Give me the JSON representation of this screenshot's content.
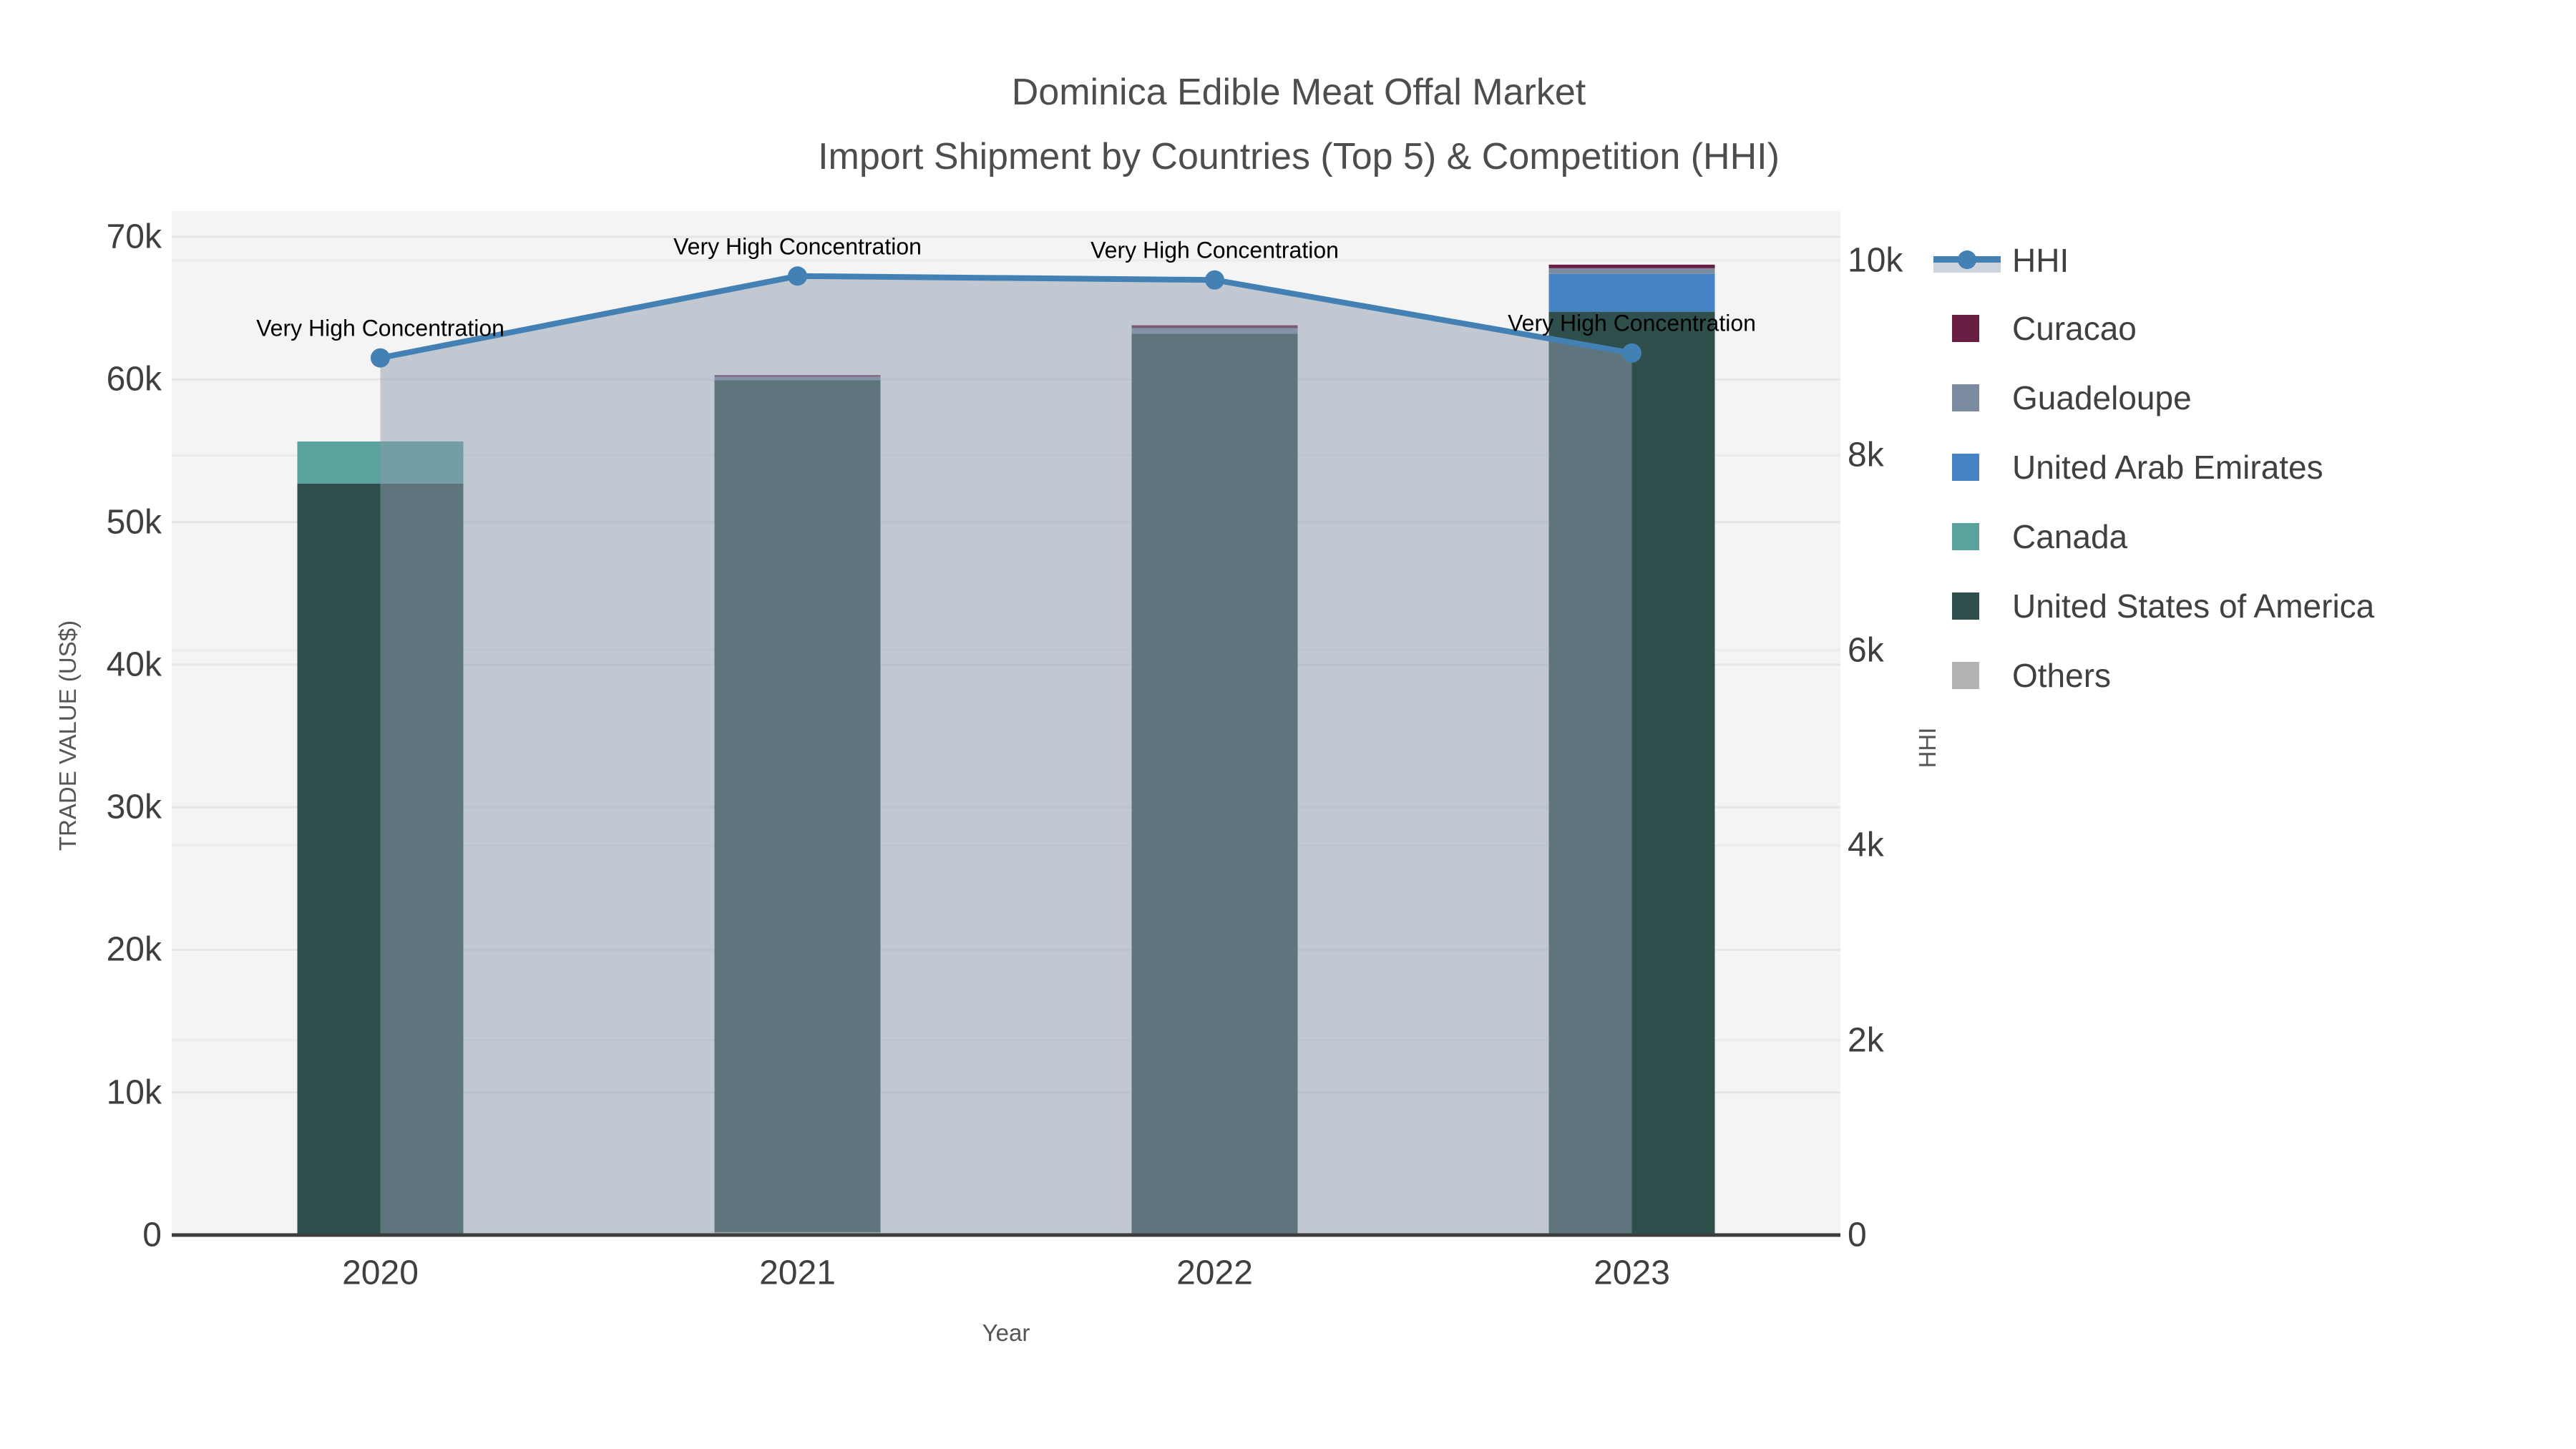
{
  "title": {
    "line1": "Dominica Edible Meat Offal Market",
    "line2": "Import Shipment by Countries (Top 5) & Competition (HHI)"
  },
  "axes": {
    "x": {
      "title": "Year",
      "tick_labels": [
        "2020",
        "2021",
        "2022",
        "2023"
      ]
    },
    "y_left": {
      "title": "TRADE VALUE (US$)",
      "tick_labels": [
        "0",
        "10k",
        "20k",
        "30k",
        "40k",
        "50k",
        "60k",
        "70k"
      ],
      "tick_values": [
        0,
        10000,
        20000,
        30000,
        40000,
        50000,
        60000,
        70000
      ]
    },
    "y_right": {
      "title": "HHI",
      "tick_labels": [
        "0",
        "2k",
        "4k",
        "6k",
        "8k",
        "10k"
      ],
      "tick_values": [
        0,
        2000,
        4000,
        6000,
        8000,
        10000
      ]
    }
  },
  "legend": {
    "items": [
      {
        "label": "HHI",
        "type": "line",
        "color": "#4381b5",
        "band_color": "#cdd3dd"
      },
      {
        "label": "Curacao",
        "type": "square",
        "color": "#681e43"
      },
      {
        "label": "Guadeloupe",
        "type": "square",
        "color": "#7b8ba1"
      },
      {
        "label": "United Arab Emirates",
        "type": "square",
        "color": "#4484c4"
      },
      {
        "label": "Canada",
        "type": "square",
        "color": "#5ba19e"
      },
      {
        "label": "United States of America",
        "type": "square",
        "color": "#2f4f4d"
      },
      {
        "label": "Others",
        "type": "square",
        "color": "#b3b3b3"
      }
    ]
  },
  "colors": {
    "plot_bg": "#f4f4f4",
    "grid_left": "#e4e6e8",
    "grid_right": "#eaecee",
    "axis_line": "#3d3d3d",
    "tick_text": "#3f3f3f",
    "title_text": "#4d4d4d",
    "hhi_line": "#4381b5",
    "hhi_area_fill": "rgba(141,155,173,0.5)"
  },
  "chart_data": {
    "type": "bar",
    "stacked": true,
    "title": "Dominica Edible Meat Offal Market Import Shipment by Countries (Top 5) & Competition (HHI)",
    "xlabel": "Year",
    "ylabel": "TRADE VALUE (US$)",
    "ylabel_right": "HHI",
    "categories": [
      "2020",
      "2021",
      "2022",
      "2023"
    ],
    "unit": "US$",
    "ylim_left": [
      0,
      70000
    ],
    "ylim_right": [
      0,
      10000
    ],
    "grid": true,
    "legend_position": "right",
    "series": [
      {
        "name": "Others",
        "color": "#b3b3b3",
        "values": [
          50,
          200,
          100,
          100
        ]
      },
      {
        "name": "United States of America",
        "color": "#2f4f4d",
        "values": [
          52650,
          59750,
          63100,
          64650
        ]
      },
      {
        "name": "Canada",
        "color": "#5ba19e",
        "values": [
          2950,
          0,
          0,
          0
        ]
      },
      {
        "name": "United Arab Emirates",
        "color": "#4484c4",
        "values": [
          0,
          0,
          0,
          2650
        ]
      },
      {
        "name": "Guadeloupe",
        "color": "#7b8ba1",
        "values": [
          0,
          250,
          400,
          400
        ]
      },
      {
        "name": "Curacao",
        "color": "#681e43",
        "values": [
          0,
          100,
          200,
          250
        ]
      }
    ],
    "stack_totals": [
      55650,
      60300,
      63800,
      68050
    ],
    "line_series": {
      "name": "HHI",
      "axis": "right",
      "marker": "circle",
      "values": [
        9000,
        9840,
        9800,
        9050
      ]
    },
    "annotation_label": "Very High Concentration"
  }
}
